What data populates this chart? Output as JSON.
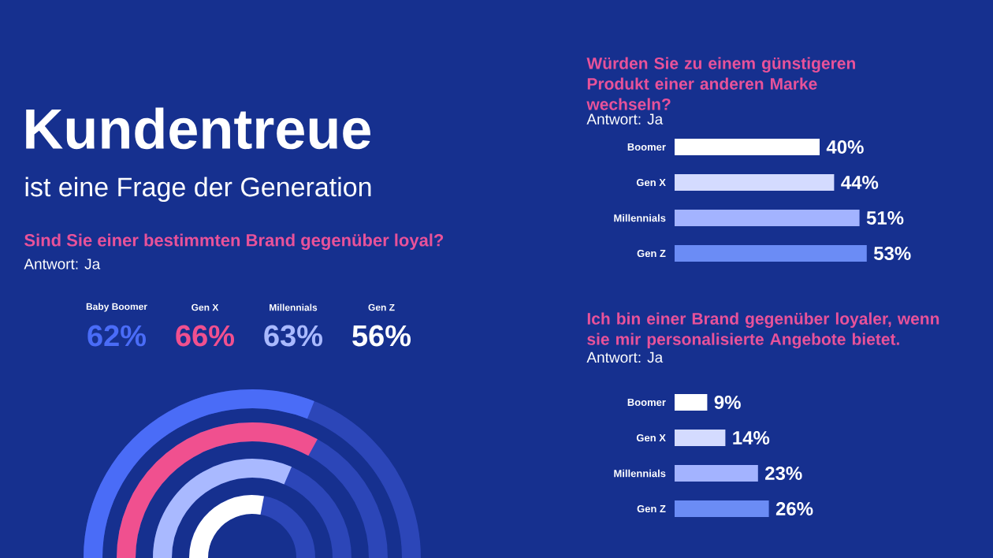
{
  "chart_data": [
    {
      "type": "other",
      "title": "Sind Sie einer bestimmten Brand gegenüber loyal?",
      "subtitle": "Antwort: Ja",
      "annotations": [
        "Kundentreue",
        "ist eine Frage der Generation"
      ],
      "categories": [
        "Baby Boomer",
        "Gen X",
        "Millennials",
        "Gen Z"
      ],
      "values": [
        62,
        66,
        63,
        56
      ],
      "value_labels": [
        "62%",
        "66%",
        "63%",
        "56%"
      ],
      "colors": [
        "#4a6cf7",
        "#f0508f",
        "#a9b9ff",
        "#ffffff"
      ]
    },
    {
      "type": "bar",
      "orientation": "horizontal",
      "title": "Würden Sie zu einem günstigeren Produkt einer anderen Marke wechseln?",
      "subtitle": "Antwort: Ja",
      "categories": [
        "Boomer",
        "Gen X",
        "Millennials",
        "Gen Z"
      ],
      "values": [
        40,
        44,
        51,
        53
      ],
      "value_labels": [
        "40%",
        "44%",
        "51%",
        "53%"
      ],
      "colors": [
        "#ffffff",
        "#d4dbff",
        "#a3b3ff",
        "#6b8cf5"
      ]
    },
    {
      "type": "bar",
      "orientation": "horizontal",
      "title": "Ich bin einer Brand gegenüber loyaler, wenn sie mir personalisierte Angebote bietet.",
      "subtitle": "Antwort: Ja",
      "categories": [
        "Boomer",
        "Gen X",
        "Millennials",
        "Gen Z"
      ],
      "values": [
        9,
        14,
        23,
        26
      ],
      "value_labels": [
        "9%",
        "14%",
        "23%",
        "26%"
      ],
      "colors": [
        "#ffffff",
        "#d4dbff",
        "#a3b3ff",
        "#6b8cf5"
      ]
    }
  ]
}
